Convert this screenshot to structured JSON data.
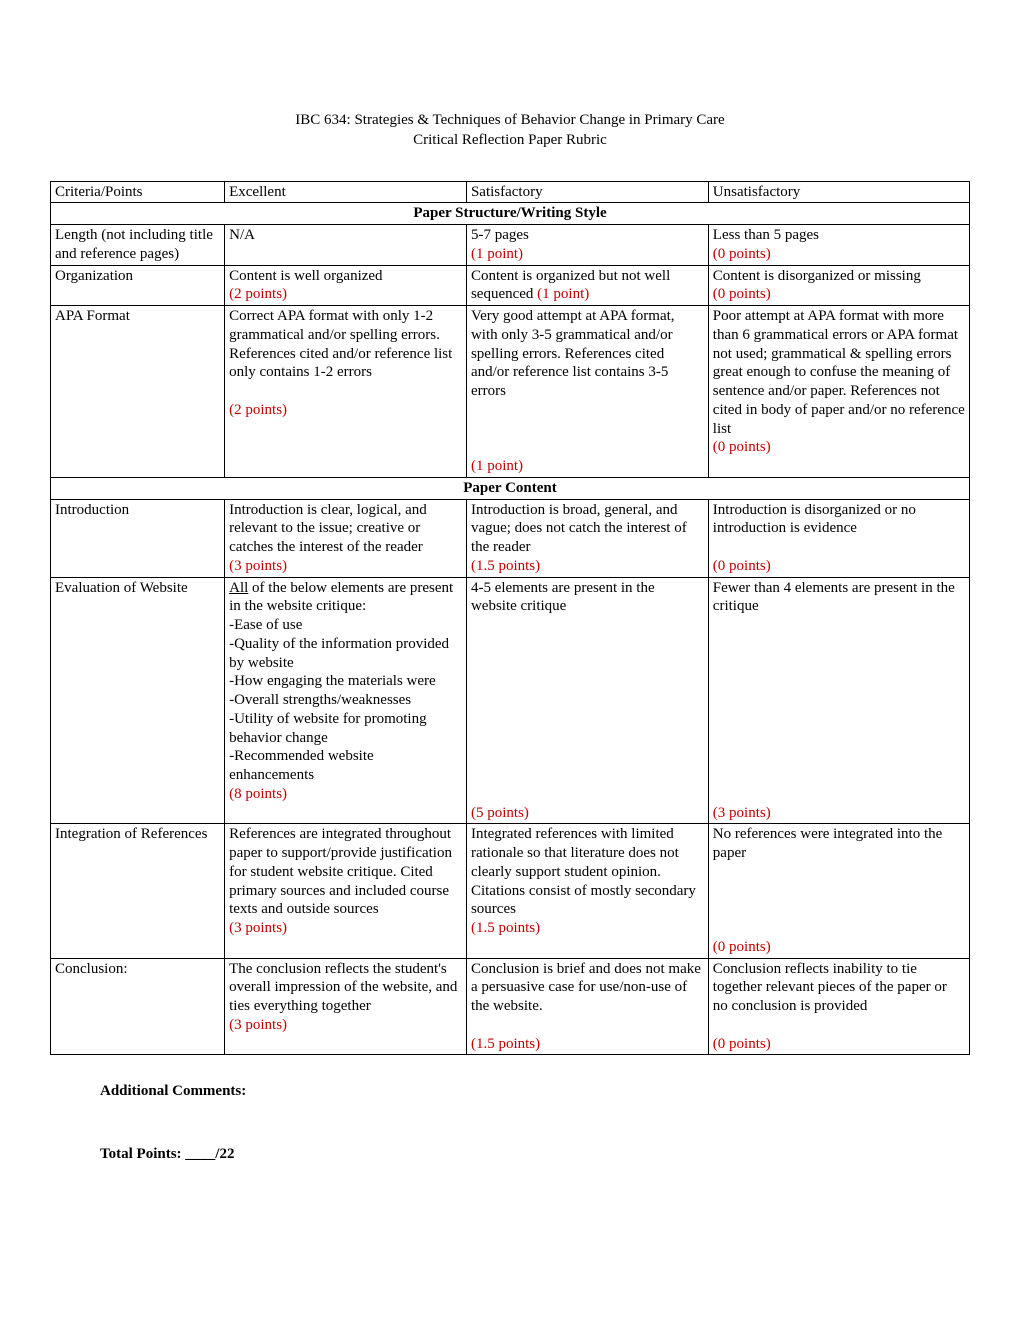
{
  "title1": "IBC 634: Strategies & Techniques of Behavior Change in Primary Care",
  "title2": "Critical Reflection Paper Rubric",
  "headers": {
    "criteria": "Criteria/Points",
    "excellent": "Excellent",
    "satisfactory": "Satisfactory",
    "unsatisfactory": "Unsatisfactory"
  },
  "section1": "Paper Structure/Writing Style",
  "section2": "Paper Content",
  "rows": {
    "length": {
      "label": "Length (not including title and reference pages)",
      "e_text": "N/A",
      "e_pts": "",
      "s_text": "5-7 pages",
      "s_pts": "(1 point)",
      "u_text": "Less than 5 pages",
      "u_pts": "(0 points)"
    },
    "org": {
      "label": "Organization",
      "e_text": "Content is well organized",
      "e_pts": "(2 points)",
      "s_text": "Content is organized but not well sequenced ",
      "s_pts": "(1 point)",
      "u_text": "Content is disorganized or missing",
      "u_pts": "(0 points)"
    },
    "apa": {
      "label": "APA Format",
      "e_text": "Correct APA format with only 1-2 grammatical and/or spelling errors. References cited and/or reference list only contains 1-2 errors",
      "e_pts": "(2 points)",
      "s_text": "Very good attempt at APA format, with only 3-5 grammatical and/or spelling errors. References cited and/or reference list contains 3-5 errors",
      "s_pts": "(1 point)",
      "u_text": "Poor attempt at APA format with more than 6 grammatical errors or APA format not used; grammatical & spelling errors great enough to confuse the meaning of sentence and/or paper. References not cited in body of paper and/or no reference list",
      "u_pts": "(0 points)"
    },
    "intro": {
      "label": "Introduction",
      "e_text": "Introduction is clear, logical, and relevant to the issue; creative or catches the interest of the reader",
      "e_pts": "(3 points)",
      "s_text": "Introduction is broad, general, and vague; does not catch the interest of the reader",
      "s_pts": "(1.5 points)",
      "u_text": "Introduction is disorganized or no introduction is evidence",
      "u_pts": "(0 points)"
    },
    "eval": {
      "label": "Evaluation of Website",
      "e_lead": "All",
      "e_text": " of the below elements are present in the website critique:\n-Ease of use\n-Quality of the information provided by website\n-How engaging the materials were\n-Overall strengths/weaknesses\n-Utility of website for promoting behavior change\n-Recommended website enhancements",
      "e_pts": "(8 points)",
      "s_text": "4-5 elements are present in the website critique",
      "s_pts": "(5 points)",
      "u_text": "Fewer than 4 elements are present in the critique",
      "u_pts": "(3 points)"
    },
    "refs": {
      "label": "Integration of References",
      "e_text": "References are integrated throughout paper to support/provide justification for student website critique. Cited primary sources and included course texts and outside sources",
      "e_pts": "(3 points)",
      "s_text": "Integrated references with limited rationale so that literature does not clearly support student opinion. Citations consist of mostly secondary sources",
      "s_pts": "(1.5 points)",
      "u_text": "No references were integrated into the paper",
      "u_pts": "(0 points)"
    },
    "conc": {
      "label": "Conclusion:",
      "e_text": "The conclusion reflects the student's overall impression of the website, and ties everything together",
      "e_pts": "(3 points)",
      "s_text": "Conclusion is brief and does not make a persuasive case for use/non-use of the website.",
      "s_pts": "(1.5 points)",
      "u_text": "Conclusion reflects inability to tie together relevant pieces of the paper or no conclusion is provided",
      "u_pts": "(0 points)"
    }
  },
  "footer": {
    "comments": "Additional Comments:",
    "total": "Total Points: ____/22"
  }
}
